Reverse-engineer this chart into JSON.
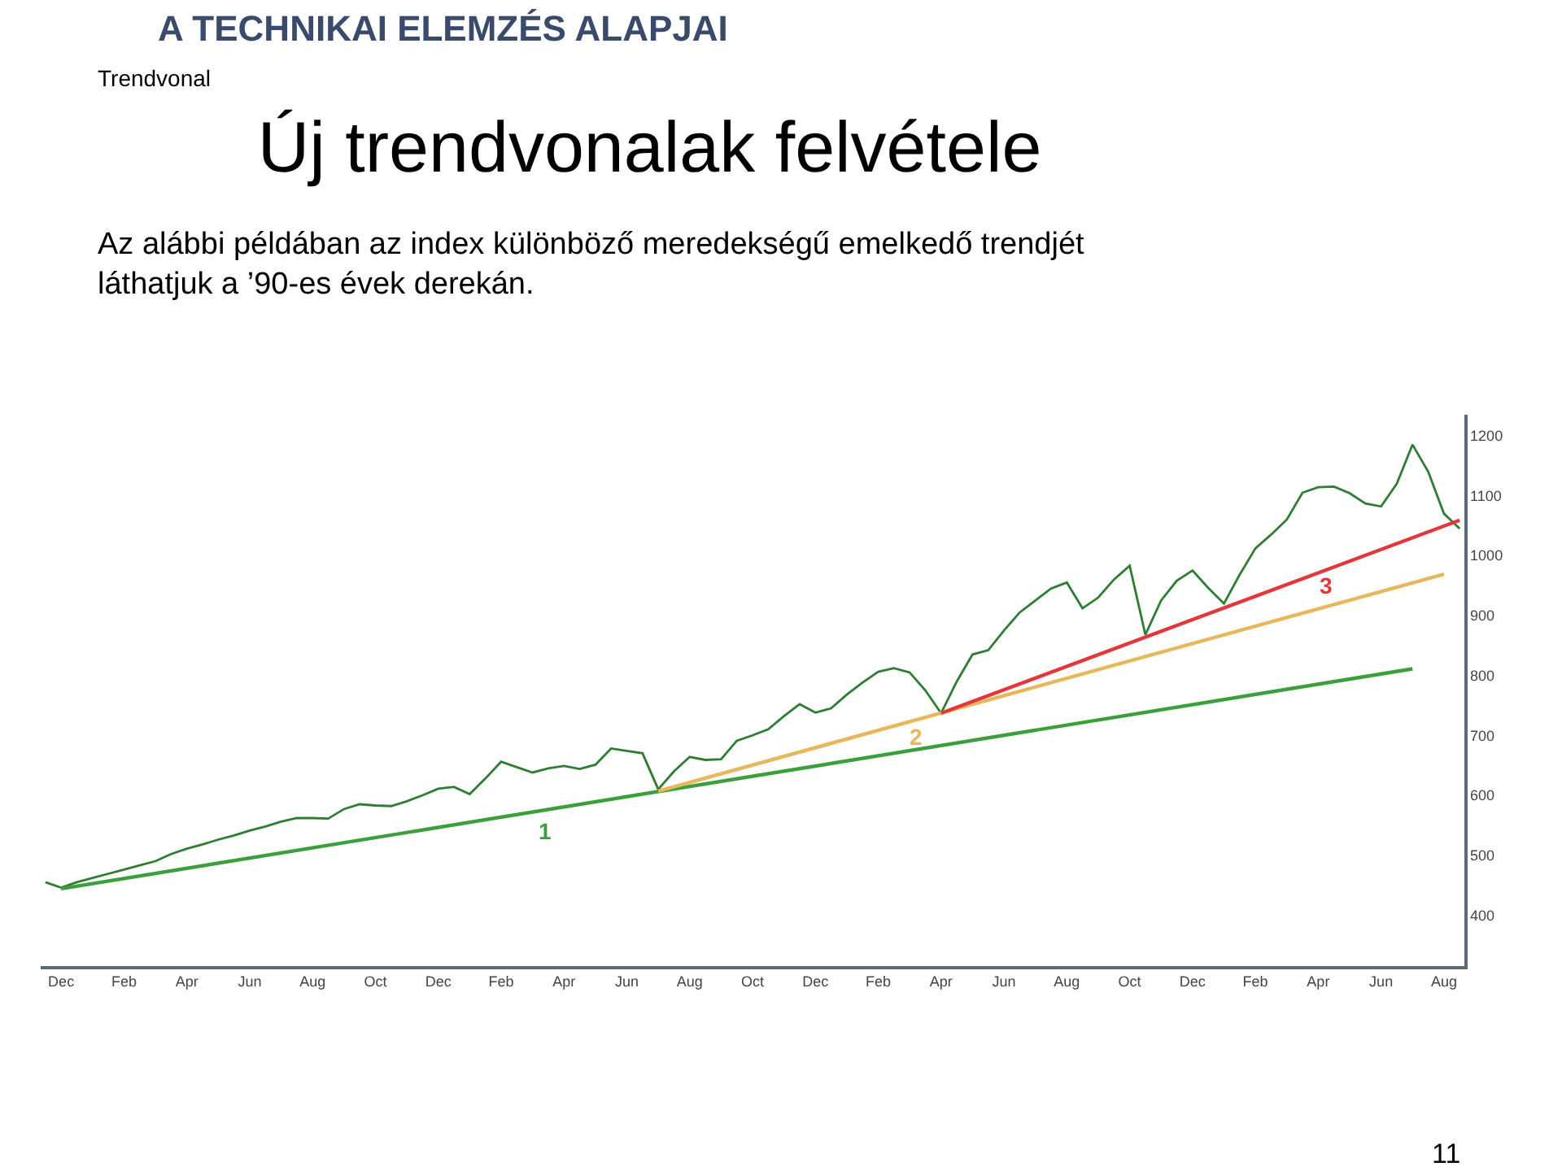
{
  "chart_data": {
    "type": "line",
    "title": "Új trendvonalak felvétele",
    "subtitle": "Az alábbi példában az index különböző meredekségű emelkedő trendjét láthatjuk a ’90-es évek derekán.",
    "annotations": [
      "A TECHNIKAI ELEMZÉS ALAPJAI",
      "Trendvonal",
      "1",
      "2",
      "3",
      "11"
    ],
    "categories": [
      null,
      "Dec",
      null,
      null,
      null,
      "Feb",
      null,
      null,
      null,
      "Apr",
      null,
      null,
      null,
      "Jun",
      null,
      null,
      null,
      "Aug",
      null,
      null,
      null,
      "Oct",
      null,
      null,
      null,
      "Dec",
      null,
      null,
      null,
      "Feb",
      null,
      null,
      null,
      "Apr",
      null,
      null,
      null,
      "Jun",
      null,
      null,
      null,
      "Aug",
      null,
      null,
      null,
      "Oct",
      null,
      null,
      null,
      "Dec",
      null,
      null,
      null,
      "Feb",
      null,
      null,
      null,
      "Apr",
      null,
      null,
      null,
      "Jun",
      null,
      null,
      null,
      "Aug",
      null,
      null,
      null,
      "Oct",
      null,
      null,
      null,
      "Dec",
      null,
      null,
      null,
      "Feb",
      null,
      null,
      null,
      "Apr",
      null,
      null,
      null,
      "Jun",
      null,
      null,
      null,
      "Aug",
      null
    ],
    "series": [
      {
        "color": "#2e7d32",
        "values": [
          455,
          446,
          455,
          462,
          469,
          476,
          483,
          490,
          502,
          511,
          518,
          526,
          533,
          541,
          548,
          556,
          562,
          562,
          561,
          577,
          585,
          583,
          582,
          590,
          600,
          611,
          614,
          602,
          628,
          656,
          647,
          638,
          645,
          649,
          644,
          651,
          678,
          674,
          670,
          610,
          640,
          664,
          659,
          660,
          691,
          700,
          710,
          732,
          752,
          738,
          745,
          768,
          788,
          806,
          812,
          805,
          775,
          737,
          790,
          835,
          842,
          875,
          905,
          925,
          945,
          955,
          912,
          930,
          960,
          983,
          868,
          925,
          958,
          975,
          946,
          920,
          968,
          1012,
          1035,
          1060,
          1105,
          1114,
          1115,
          1104,
          1087,
          1082,
          1120,
          1185,
          1140,
          1070,
          1045
        ]
      },
      {
        "type": "line",
        "color": "#3c9f3c",
        "values": [
          null,
          444,
          null,
          null,
          null,
          null,
          null,
          null,
          null,
          null,
          null,
          null,
          null,
          null,
          null,
          null,
          null,
          null,
          null,
          null,
          null,
          null,
          null,
          null,
          null,
          null,
          null,
          null,
          null,
          null,
          null,
          null,
          null,
          null,
          null,
          null,
          null,
          null,
          null,
          null,
          null,
          null,
          null,
          null,
          null,
          null,
          null,
          null,
          null,
          null,
          null,
          null,
          null,
          null,
          null,
          null,
          null,
          null,
          null,
          null,
          null,
          null,
          null,
          null,
          null,
          null,
          null,
          null,
          null,
          null,
          null,
          null,
          null,
          null,
          null,
          null,
          null,
          null,
          null,
          null,
          null,
          null,
          null,
          null,
          null,
          null,
          null,
          811,
          null,
          null,
          null
        ]
      },
      {
        "type": "line",
        "color": "#e8b75c",
        "values": [
          null,
          null,
          null,
          null,
          null,
          null,
          null,
          null,
          null,
          null,
          null,
          null,
          null,
          null,
          null,
          null,
          null,
          null,
          null,
          null,
          null,
          null,
          null,
          null,
          null,
          null,
          null,
          null,
          null,
          null,
          null,
          null,
          null,
          null,
          null,
          null,
          null,
          null,
          null,
          607,
          null,
          null,
          null,
          null,
          null,
          null,
          null,
          null,
          null,
          null,
          null,
          null,
          null,
          null,
          null,
          null,
          null,
          null,
          null,
          null,
          null,
          null,
          null,
          null,
          null,
          null,
          null,
          null,
          null,
          null,
          null,
          null,
          null,
          null,
          null,
          null,
          null,
          null,
          null,
          null,
          null,
          null,
          null,
          null,
          null,
          null,
          null,
          null,
          null,
          969,
          null
        ]
      },
      {
        "type": "line",
        "color": "#e0383c",
        "values": [
          null,
          null,
          null,
          null,
          null,
          null,
          null,
          null,
          null,
          null,
          null,
          null,
          null,
          null,
          null,
          null,
          null,
          null,
          null,
          null,
          null,
          null,
          null,
          null,
          null,
          null,
          null,
          null,
          null,
          null,
          null,
          null,
          null,
          null,
          null,
          null,
          null,
          null,
          null,
          null,
          null,
          null,
          null,
          null,
          null,
          null,
          null,
          null,
          null,
          null,
          null,
          null,
          null,
          null,
          null,
          null,
          null,
          737,
          null,
          null,
          null,
          null,
          null,
          null,
          null,
          null,
          null,
          null,
          null,
          null,
          null,
          null,
          null,
          null,
          null,
          null,
          null,
          null,
          null,
          null,
          null,
          null,
          null,
          null,
          null,
          null,
          null,
          null,
          null,
          null,
          1059
        ]
      }
    ],
    "ylim": [
      315,
      1235
    ],
    "yticks": [
      400,
      500,
      600,
      700,
      800,
      900,
      1000,
      1100,
      1200
    ],
    "marker": "none",
    "line_style": "solid"
  }
}
